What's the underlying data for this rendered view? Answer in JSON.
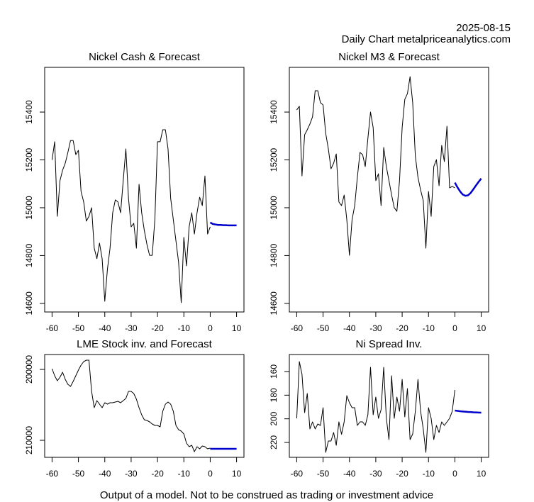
{
  "header": {
    "date": "2025-08-15",
    "source": "Daily Chart metalpriceanalytics.com"
  },
  "footer": "Output of a model. Not to be construed as trading or investment advice",
  "chart_data": [
    {
      "type": "line",
      "title": "Nickel Cash & Forecast",
      "xlim": [
        -62.8,
        12.8
      ],
      "xticks": [
        -60,
        -50,
        -40,
        -30,
        -20,
        -10,
        0,
        10
      ],
      "ylim": [
        14564,
        15587
      ],
      "yticks": [
        14600,
        14800,
        15000,
        15200,
        15400
      ],
      "series": [
        {
          "color": "#000000",
          "x": [
            -60,
            -59,
            -58,
            -57,
            -56,
            -55,
            -54,
            -53,
            -52,
            -51,
            -50,
            -49,
            -48,
            -47,
            -46,
            -45,
            -44,
            -43,
            -42,
            -41,
            -40,
            -39,
            -38,
            -37,
            -36,
            -35,
            -34,
            -33,
            -32,
            -31,
            -30,
            -29,
            -28,
            -27,
            -26,
            -25,
            -24,
            -23,
            -22,
            -21,
            -20,
            -19,
            -18,
            -17,
            -16,
            -15,
            -14,
            -13,
            -12,
            -11,
            -10,
            -9,
            -8,
            -7,
            -6,
            -5,
            -4,
            -3,
            -2,
            -1,
            0
          ],
          "values": [
            15200,
            15276,
            14964,
            15113,
            15157,
            15186,
            15231,
            15281,
            15281,
            15222,
            15240,
            15068,
            15024,
            14944,
            14964,
            15000,
            14831,
            14787,
            14852,
            14787,
            14609,
            14742,
            14831,
            14979,
            15033,
            15024,
            14979,
            15113,
            15246,
            15039,
            14920,
            14935,
            14831,
            15098,
            14979,
            14905,
            14846,
            14801,
            14801,
            14950,
            15276,
            15276,
            15326,
            15326,
            15246,
            15039,
            14950,
            14861,
            14772,
            14603,
            14876,
            14757,
            14920,
            14979,
            14890,
            14979,
            15044,
            15009,
            15133,
            14890,
            14920
          ]
        },
        {
          "color": "#0000cc",
          "x": [
            0,
            1,
            2,
            3,
            4,
            5,
            6,
            7,
            8,
            9,
            10
          ],
          "values": [
            14938,
            14932,
            14930,
            14928,
            14928,
            14927,
            14927,
            14926,
            14926,
            14926,
            14926
          ]
        }
      ]
    },
    {
      "type": "line",
      "title": "Nickel M3 & Forecast",
      "xlim": [
        -62.8,
        12.8
      ],
      "xticks": [
        -60,
        -50,
        -40,
        -30,
        -20,
        -10,
        0,
        10
      ],
      "ylim": [
        14564,
        15587
      ],
      "yticks": [
        14600,
        14800,
        15000,
        15200,
        15400
      ],
      "series": [
        {
          "color": "#000000",
          "x": [
            -60,
            -59,
            -58,
            -57,
            -56,
            -55,
            -54,
            -53,
            -52,
            -51,
            -50,
            -49,
            -48,
            -47,
            -46,
            -45,
            -44,
            -43,
            -42,
            -41,
            -40,
            -39,
            -38,
            -37,
            -36,
            -35,
            -34,
            -33,
            -32,
            -31,
            -30,
            -29,
            -28,
            -27,
            -26,
            -25,
            -24,
            -23,
            -22,
            -21,
            -20,
            -19,
            -18,
            -17,
            -16,
            -15,
            -14,
            -13,
            -12,
            -11,
            -10,
            -9,
            -8,
            -7,
            -6,
            -5,
            -4,
            -3,
            -2,
            -1,
            0
          ],
          "values": [
            15409,
            15424,
            15133,
            15305,
            15326,
            15350,
            15380,
            15489,
            15489,
            15439,
            15430,
            15311,
            15246,
            15163,
            15186,
            15225,
            15024,
            15009,
            15053,
            14950,
            14801,
            14950,
            15009,
            15127,
            15231,
            15222,
            15172,
            15290,
            15400,
            15335,
            15113,
            15142,
            15009,
            15252,
            15172,
            15113,
            15053,
            15000,
            14985,
            15113,
            15335,
            15453,
            15477,
            15548,
            15439,
            15216,
            15127,
            15074,
            15030,
            14831,
            15068,
            14964,
            15172,
            15201,
            15092,
            15261,
            15193,
            15341,
            15083,
            15089,
            15083
          ]
        },
        {
          "color": "#0000cc",
          "x": [
            0,
            1,
            2,
            3,
            4,
            5,
            6,
            7,
            8,
            9,
            10
          ],
          "values": [
            15105,
            15085,
            15068,
            15055,
            15050,
            15052,
            15062,
            15077,
            15093,
            15108,
            15122
          ]
        }
      ]
    },
    {
      "type": "line",
      "title": "LME Stock inv. and Forecast",
      "xlim": [
        -62.8,
        12.8
      ],
      "xticks": [
        -60,
        -50,
        -40,
        -30,
        -20,
        -10,
        0,
        10
      ],
      "ylim": [
        212400,
        197900
      ],
      "yticks": [
        200000,
        210000
      ],
      "series": [
        {
          "color": "#000000",
          "x": [
            -60,
            -59,
            -58,
            -57,
            -56,
            -55,
            -54,
            -53,
            -52,
            -51,
            -50,
            -49,
            -48,
            -47,
            -46,
            -45,
            -44,
            -43,
            -42,
            -41,
            -40,
            -39,
            -38,
            -37,
            -36,
            -35,
            -34,
            -33,
            -32,
            -31,
            -30,
            -29,
            -28,
            -27,
            -26,
            -25,
            -24,
            -23,
            -22,
            -21,
            -20,
            -19,
            -18,
            -17,
            -16,
            -15,
            -14,
            -13,
            -12,
            -11,
            -10,
            -9,
            -8,
            -7,
            -6,
            -5,
            -4,
            -3,
            -2,
            -1,
            0
          ],
          "values": [
            199900,
            200900,
            201600,
            201100,
            200400,
            201400,
            202100,
            202400,
            201700,
            200900,
            200100,
            199400,
            198900,
            198700,
            198700,
            203100,
            205400,
            204400,
            204900,
            205400,
            204700,
            204900,
            204700,
            204700,
            204600,
            204500,
            204700,
            204400,
            204100,
            203100,
            203100,
            203400,
            204200,
            205400,
            206400,
            207100,
            207200,
            207400,
            207700,
            207900,
            207900,
            208100,
            205900,
            204900,
            204600,
            204900,
            205900,
            207900,
            208500,
            208700,
            209100,
            210400,
            210900,
            210700,
            211600,
            210900,
            211200,
            210800,
            210900,
            211200,
            211100
          ]
        },
        {
          "color": "#0000cc",
          "x": [
            0,
            1,
            2,
            3,
            4,
            5,
            6,
            7,
            8,
            9,
            10
          ],
          "values": [
            211200,
            211200,
            211200,
            211200,
            211200,
            211200,
            211200,
            211200,
            211200,
            211200,
            211200
          ]
        }
      ]
    },
    {
      "type": "line",
      "title": "Ni Spread Inv.",
      "xlim": [
        -62.8,
        12.8
      ],
      "xticks": [
        -60,
        -50,
        -40,
        -30,
        -20,
        -10,
        0,
        10
      ],
      "ylim": [
        232.6,
        145.6
      ],
      "yticks": [
        160,
        180,
        200,
        220
      ],
      "series": [
        {
          "color": "#000000",
          "x": [
            -60,
            -59,
            -58,
            -57,
            -56,
            -55,
            -54,
            -53,
            -52,
            -51,
            -50,
            -49,
            -48,
            -47,
            -46,
            -45,
            -44,
            -43,
            -42,
            -41,
            -40,
            -39,
            -38,
            -37,
            -36,
            -35,
            -34,
            -33,
            -32,
            -31,
            -30,
            -29,
            -28,
            -27,
            -26,
            -25,
            -24,
            -23,
            -22,
            -21,
            -20,
            -19,
            -18,
            -17,
            -16,
            -15,
            -14,
            -13,
            -12,
            -11,
            -10,
            -9,
            -8,
            -7,
            -6,
            -5,
            -4,
            -3,
            -2,
            -1,
            0
          ],
          "values": [
            199.6,
            151.6,
            162.4,
            194.8,
            178.6,
            208.6,
            202.6,
            208.6,
            204.4,
            205.6,
            190.6,
            228.4,
            218.8,
            218.8,
            211.6,
            222.4,
            202.6,
            213.1,
            202.6,
            180.4,
            186.4,
            190.6,
            190.6,
            205.6,
            202.6,
            202.6,
            205.6,
            196.6,
            156.4,
            196.6,
            181.6,
            199.6,
            192.4,
            156.4,
            199.6,
            217.6,
            163.6,
            199.6,
            181.6,
            193.6,
            166.6,
            198.4,
            174.4,
            217.6,
            212.8,
            193.6,
            166.6,
            193.6,
            208.6,
            228.4,
            190.6,
            199.6,
            217.6,
            205.6,
            211.6,
            202.6,
            205.6,
            202.6,
            199.6,
            193.6,
            175.6
          ]
        },
        {
          "color": "#0000cc",
          "x": [
            0,
            1,
            2,
            3,
            4,
            5,
            6,
            7,
            8,
            9,
            10
          ],
          "values": [
            193.0,
            193.3,
            193.6,
            193.8,
            194.0,
            194.2,
            194.3,
            194.5,
            194.6,
            194.7,
            194.8
          ]
        }
      ]
    }
  ]
}
